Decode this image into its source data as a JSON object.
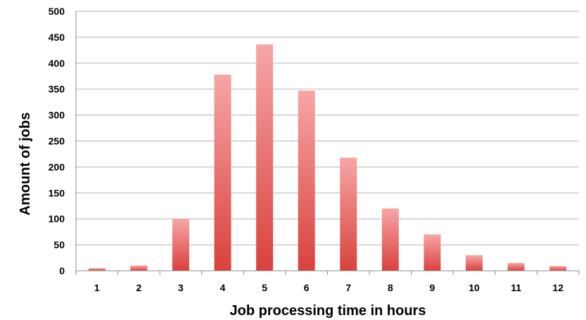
{
  "chart_data": {
    "type": "bar",
    "title": "",
    "xlabel": "Job processing time in hours",
    "ylabel": "Amount of jobs",
    "categories": [
      "1",
      "2",
      "3",
      "4",
      "5",
      "6",
      "7",
      "8",
      "9",
      "10",
      "11",
      "12"
    ],
    "values": [
      5,
      10,
      100,
      378,
      436,
      347,
      218,
      120,
      70,
      30,
      15,
      9
    ],
    "ylim": [
      0,
      500
    ],
    "yticks": [
      0,
      50,
      100,
      150,
      200,
      250,
      300,
      350,
      400,
      450,
      500
    ],
    "grid": true,
    "legend": "none",
    "bar_color_top": "#f7a6a6",
    "bar_color_bottom": "#d9413d"
  }
}
